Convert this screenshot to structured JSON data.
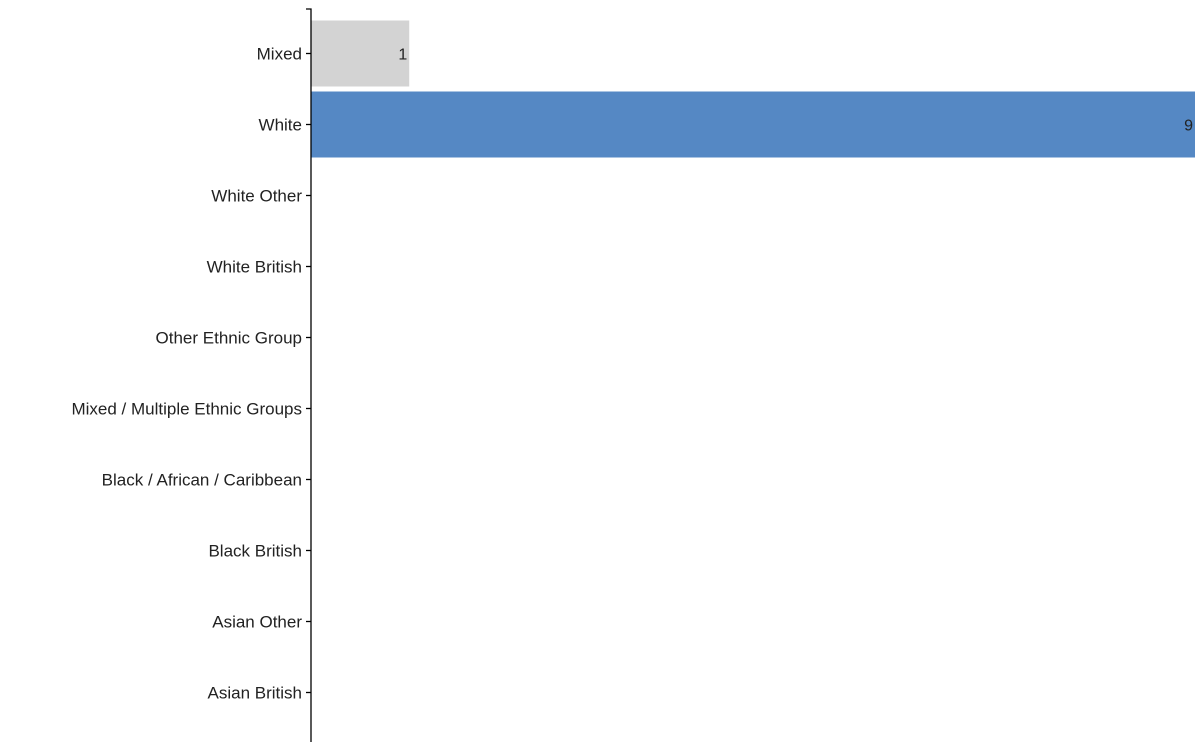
{
  "chart_data": {
    "type": "bar",
    "orientation": "horizontal",
    "categories": [
      "Mixed",
      "White",
      "White Other",
      "White British",
      "Other Ethnic Group",
      "Mixed / Multiple Ethnic Groups",
      "Black / African / Caribbean",
      "Black British",
      "Asian Other",
      "Asian British"
    ],
    "values": [
      1,
      9,
      0,
      0,
      0,
      0,
      0,
      0,
      0,
      0
    ],
    "data_labels": [
      "1",
      "9",
      "",
      "",
      "",
      "",
      "",
      "",
      "",
      ""
    ],
    "bar_colors": [
      "#d3d3d3",
      "#5588c4",
      "#5588c4",
      "#5588c4",
      "#5588c4",
      "#5588c4",
      "#5588c4",
      "#5588c4",
      "#5588c4",
      "#5588c4"
    ],
    "xlim": [
      0,
      9
    ],
    "title": "",
    "xlabel": "",
    "ylabel": "",
    "grid": false,
    "legend": "none"
  }
}
